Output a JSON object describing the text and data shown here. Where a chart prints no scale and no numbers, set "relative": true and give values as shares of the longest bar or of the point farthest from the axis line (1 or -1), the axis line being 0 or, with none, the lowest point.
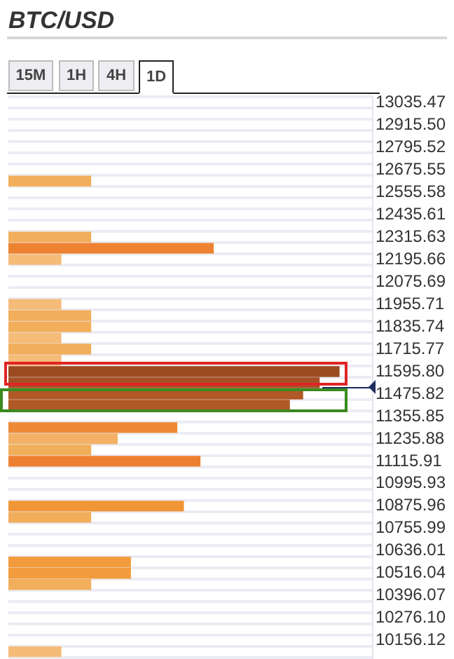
{
  "chart_data": {
    "type": "bar",
    "orientation": "horizontal",
    "relative": true,
    "title": "BTC/USD",
    "annotations": [
      "15M",
      "1H",
      "4H",
      "1D"
    ],
    "categories": [
      "13035.47",
      null,
      "12915.50",
      null,
      "12795.52",
      null,
      "12675.55",
      null,
      "12555.58",
      null,
      "12435.61",
      null,
      "12315.63",
      null,
      "12195.66",
      null,
      "12075.69",
      null,
      "11955.71",
      null,
      "11835.74",
      null,
      "11715.77",
      null,
      "11595.80",
      null,
      "11475.82",
      null,
      "11355.85",
      null,
      "11235.88",
      null,
      "11115.91",
      null,
      "10995.93",
      null,
      "10875.96",
      null,
      "10755.99",
      null,
      "10636.01",
      null,
      "10516.04",
      null,
      "10396.07",
      null,
      "10276.10",
      null,
      "10156.12",
      null
    ],
    "values": [
      null,
      null,
      null,
      null,
      null,
      null,
      null,
      0.25,
      null,
      null,
      null,
      null,
      0.25,
      0.62,
      0.16,
      null,
      null,
      null,
      0.16,
      0.25,
      0.25,
      0.16,
      0.25,
      0.16,
      1,
      0.94,
      0.89,
      0.85,
      null,
      0.51,
      0.33,
      0.25,
      0.58,
      null,
      null,
      null,
      0.53,
      0.25,
      null,
      null,
      null,
      0.37,
      0.37,
      0.25,
      null,
      null,
      null,
      null,
      null,
      0.16
    ],
    "colors": [
      null,
      null,
      null,
      null,
      null,
      null,
      null,
      "#f2ae5b",
      null,
      null,
      null,
      null,
      "#f2ae5b",
      "#ed8332",
      "#f5bb78",
      null,
      null,
      null,
      "#f5bb78",
      "#f2ae5b",
      "#f2ae5b",
      "#f5bb78",
      "#f2ae5b",
      "#f5bb78",
      "#9c4a22",
      "#a65026",
      "#b05826",
      "#b05826",
      null,
      "#ee8a35",
      "#f3b066",
      "#f2ae5b",
      "#ed8030",
      null,
      null,
      null,
      "#f09636",
      "#f2ae5b",
      null,
      null,
      null,
      "#f29c3e",
      "#f29c3e",
      "#f2ae5b",
      null,
      null,
      null,
      null,
      null,
      "#f5bb78"
    ],
    "grid": "y"
  }
}
